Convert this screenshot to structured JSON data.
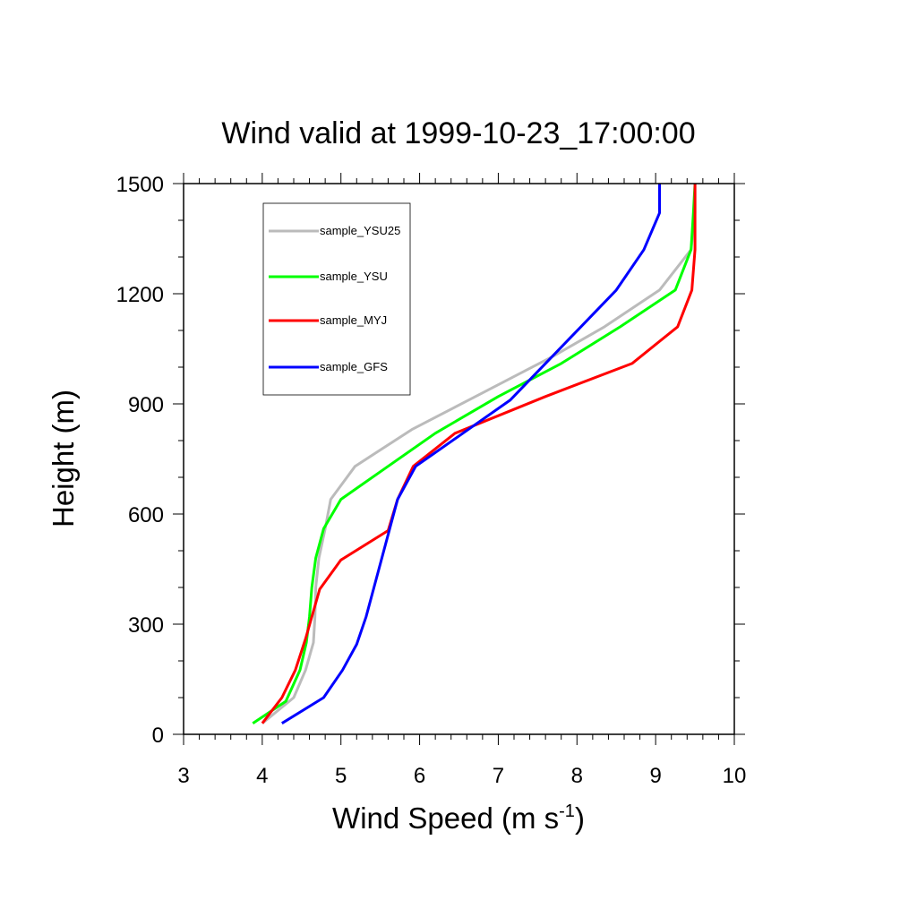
{
  "chart_data": {
    "type": "line",
    "title": "Wind valid at 1999-10-23_17:00:00",
    "xlabel": "Wind Speed (m s",
    "xlabel_superscript": "-1",
    "xlabel_suffix": ")",
    "ylabel": "Height (m)",
    "xlim": [
      3,
      10
    ],
    "ylim": [
      0,
      1500
    ],
    "xticks": [
      3,
      4,
      5,
      6,
      7,
      8,
      9,
      10
    ],
    "yticks": [
      0,
      300,
      600,
      900,
      1200,
      1500
    ],
    "legend_position": "top-left",
    "grid": false,
    "series": [
      {
        "name": "sample_YSU25",
        "color": "#bbbbbb",
        "points": [
          [
            4.0,
            30
          ],
          [
            4.4,
            100
          ],
          [
            4.55,
            175
          ],
          [
            4.65,
            250
          ],
          [
            4.67,
            320
          ],
          [
            4.68,
            400
          ],
          [
            4.72,
            480
          ],
          [
            4.8,
            560
          ],
          [
            4.87,
            640
          ],
          [
            5.18,
            730
          ],
          [
            5.9,
            830
          ],
          [
            6.8,
            930
          ],
          [
            7.7,
            1030
          ],
          [
            8.35,
            1110
          ],
          [
            9.05,
            1210
          ],
          [
            9.45,
            1320
          ],
          [
            9.5,
            1420
          ],
          [
            9.5,
            1500
          ]
        ]
      },
      {
        "name": "sample_YSU",
        "color": "#00ff00",
        "points": [
          [
            3.88,
            30
          ],
          [
            4.3,
            90
          ],
          [
            4.48,
            175
          ],
          [
            4.56,
            250
          ],
          [
            4.6,
            320
          ],
          [
            4.63,
            400
          ],
          [
            4.68,
            480
          ],
          [
            4.78,
            560
          ],
          [
            5.0,
            640
          ],
          [
            5.6,
            730
          ],
          [
            6.2,
            820
          ],
          [
            7.0,
            920
          ],
          [
            7.8,
            1010
          ],
          [
            8.55,
            1110
          ],
          [
            9.25,
            1210
          ],
          [
            9.45,
            1320
          ],
          [
            9.48,
            1420
          ],
          [
            9.5,
            1500
          ]
        ]
      },
      {
        "name": "sample_MYJ",
        "color": "#ff0000",
        "points": [
          [
            4.0,
            30
          ],
          [
            4.25,
            100
          ],
          [
            4.42,
            175
          ],
          [
            4.55,
            260
          ],
          [
            4.73,
            395
          ],
          [
            5.0,
            475
          ],
          [
            5.6,
            555
          ],
          [
            5.72,
            640
          ],
          [
            5.92,
            730
          ],
          [
            6.45,
            820
          ],
          [
            7.6,
            920
          ],
          [
            8.7,
            1010
          ],
          [
            9.28,
            1110
          ],
          [
            9.46,
            1210
          ],
          [
            9.5,
            1320
          ],
          [
            9.5,
            1500
          ]
        ]
      },
      {
        "name": "sample_GFS",
        "color": "#0000ff",
        "points": [
          [
            4.25,
            30
          ],
          [
            4.78,
            100
          ],
          [
            5.02,
            175
          ],
          [
            5.2,
            245
          ],
          [
            5.32,
            320
          ],
          [
            5.42,
            400
          ],
          [
            5.52,
            480
          ],
          [
            5.62,
            560
          ],
          [
            5.72,
            640
          ],
          [
            5.95,
            730
          ],
          [
            6.55,
            820
          ],
          [
            7.15,
            910
          ],
          [
            7.6,
            1010
          ],
          [
            8.05,
            1110
          ],
          [
            8.5,
            1210
          ],
          [
            8.85,
            1320
          ],
          [
            9.05,
            1420
          ],
          [
            9.05,
            1500
          ]
        ]
      }
    ]
  }
}
